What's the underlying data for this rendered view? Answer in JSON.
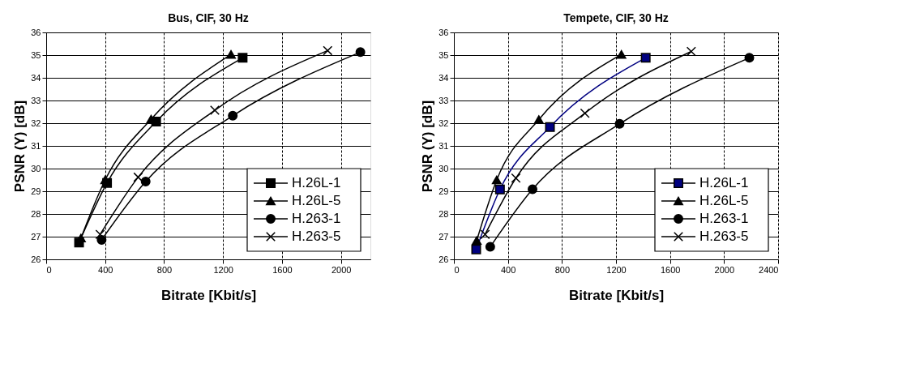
{
  "chart_data": [
    {
      "type": "line",
      "title": "Bus, CIF, 30 Hz",
      "xlabel": "Bitrate [Kbit/s]",
      "ylabel": "PSNR (Y) [dB]",
      "xlim": [
        0,
        2200
      ],
      "xticks": [
        0,
        400,
        800,
        1200,
        1600,
        2000
      ],
      "ylim": [
        26,
        36
      ],
      "yticks": [
        26,
        27,
        28,
        29,
        30,
        31,
        32,
        33,
        34,
        35,
        36
      ],
      "grid": true,
      "legend": "bottom right",
      "line_style": "solid",
      "series": [
        {
          "name": "H.26L-1",
          "color": "#000000",
          "marker": "square",
          "x": [
            223,
            413,
            746,
            1333
          ],
          "values": [
            26.74,
            29.37,
            32.07,
            34.88
          ]
        },
        {
          "name": "H.26L-5",
          "color": "#000000",
          "marker": "triangle",
          "x": [
            236,
            400,
            712,
            1254
          ],
          "values": [
            26.94,
            29.5,
            32.18,
            35.03
          ]
        },
        {
          "name": "H.263-1",
          "color": "#000000",
          "marker": "circle",
          "x": [
            376,
            675,
            1266,
            2132
          ],
          "values": [
            26.86,
            29.43,
            32.33,
            35.13
          ]
        },
        {
          "name": "H.263-5",
          "color": "#000000",
          "marker": "cross",
          "x": [
            366,
            624,
            1144,
            1910
          ],
          "values": [
            27.1,
            29.62,
            32.57,
            35.2
          ]
        }
      ]
    },
    {
      "type": "line",
      "title": "Tempete, CIF, 30 Hz",
      "xlabel": "Bitrate [Kbit/s]",
      "ylabel": "PSNR (Y) [dB]",
      "xlim": [
        0,
        2400
      ],
      "xticks": [
        0,
        400,
        800,
        1200,
        1600,
        2000,
        2400
      ],
      "ylim": [
        26,
        36
      ],
      "yticks": [
        26,
        27,
        28,
        29,
        30,
        31,
        32,
        33,
        34,
        35,
        36
      ],
      "grid": true,
      "legend": "bottom right",
      "line_style": "solid",
      "series": [
        {
          "name": "H.26L-1",
          "color": "#000080",
          "marker": "square",
          "x": [
            165,
            341,
            711,
            1420
          ],
          "values": [
            26.44,
            29.08,
            31.83,
            34.88
          ]
        },
        {
          "name": "H.26L-5",
          "color": "#000000",
          "marker": "triangle",
          "x": [
            169,
            317,
            629,
            1240
          ],
          "values": [
            26.83,
            29.5,
            32.16,
            35.03
          ]
        },
        {
          "name": "H.263-1",
          "color": "#000000",
          "marker": "circle",
          "x": [
            269,
            582,
            1227,
            2187
          ],
          "values": [
            26.55,
            29.09,
            31.97,
            34.88
          ]
        },
        {
          "name": "H.263-5",
          "color": "#000000",
          "marker": "cross",
          "x": [
            231,
            459,
            970,
            1757
          ],
          "values": [
            27.1,
            29.58,
            32.44,
            35.16
          ]
        }
      ]
    }
  ]
}
